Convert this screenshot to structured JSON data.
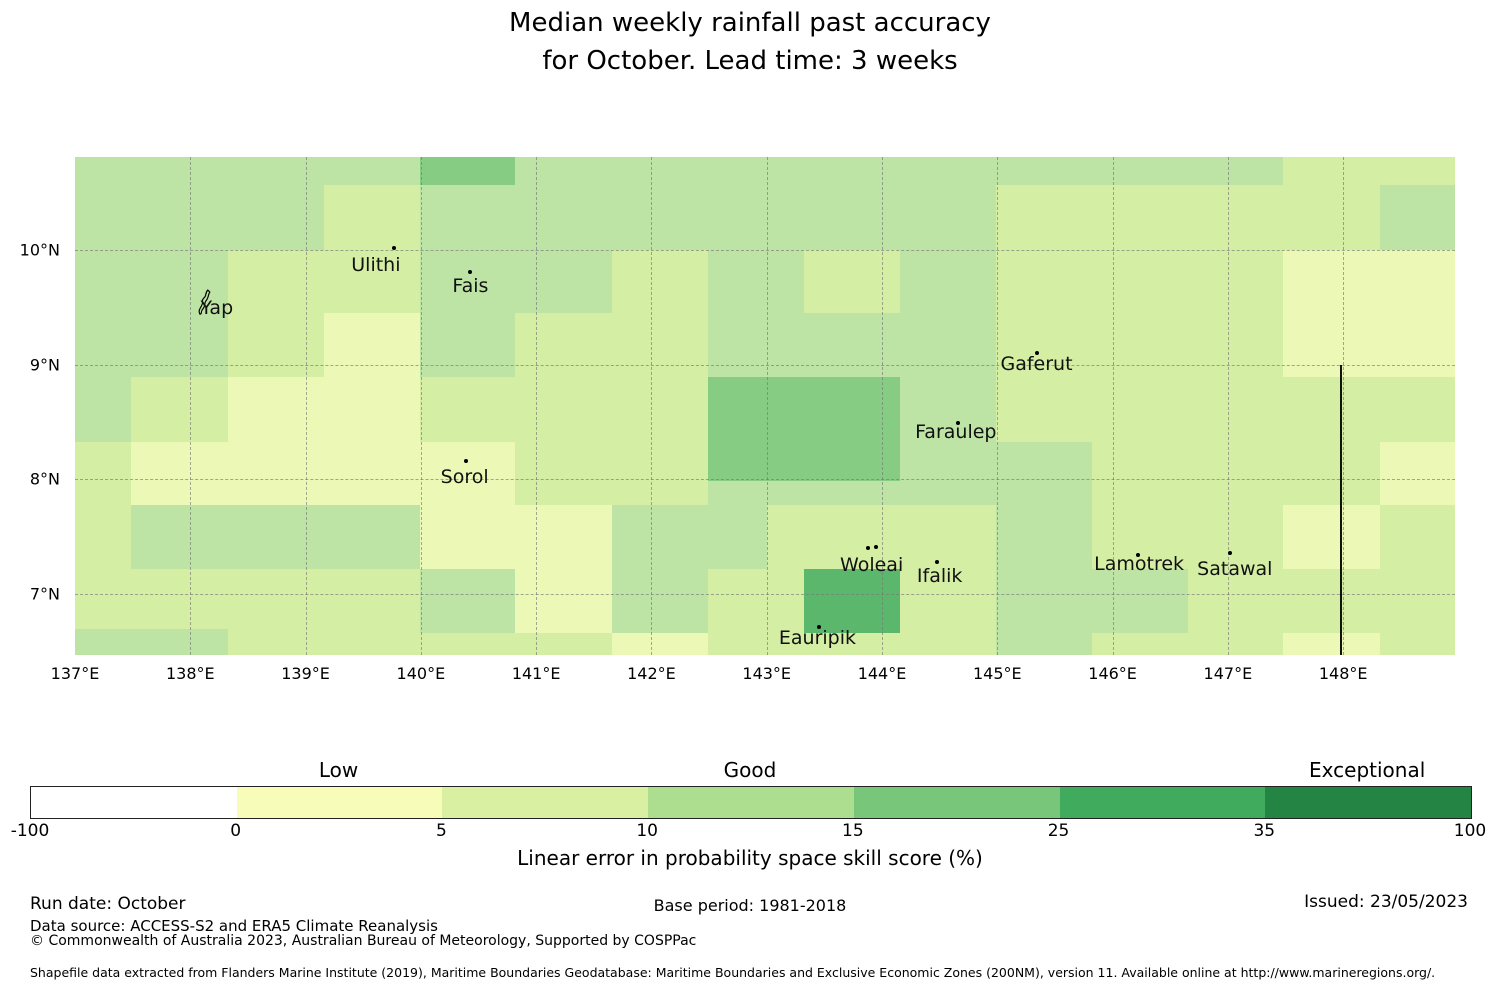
{
  "title": {
    "line1": "Median weekly rainfall past accuracy",
    "line2": "for October. Lead time: 3 weeks"
  },
  "chart_data": {
    "type": "heatmap",
    "title": "Median weekly rainfall past accuracy for October. Lead time: 3 weeks",
    "value_name": "Linear error in probability space skill score (%)",
    "lon_range": [
      137.0,
      148.97
    ],
    "lat_range": [
      6.47,
      10.81
    ],
    "grid_on": true,
    "gridline_lons": [
      138,
      139,
      140,
      141,
      142,
      143,
      144,
      145,
      146,
      147,
      148
    ],
    "gridline_lats": [
      7,
      8,
      9,
      10
    ],
    "x_ticks": [
      {
        "lon": 137,
        "label": "137°E"
      },
      {
        "lon": 138,
        "label": "138°E"
      },
      {
        "lon": 139,
        "label": "139°E"
      },
      {
        "lon": 140,
        "label": "140°E"
      },
      {
        "lon": 141,
        "label": "141°E"
      },
      {
        "lon": 142,
        "label": "142°E"
      },
      {
        "lon": 143,
        "label": "143°E"
      },
      {
        "lon": 144,
        "label": "144°E"
      },
      {
        "lon": 145,
        "label": "145°E"
      },
      {
        "lon": 146,
        "label": "146°E"
      },
      {
        "lon": 147,
        "label": "147°E"
      },
      {
        "lon": 148,
        "label": "148°E"
      }
    ],
    "y_ticks": [
      {
        "lat": 10,
        "label": "10°N"
      },
      {
        "lat": 9,
        "label": "9°N"
      },
      {
        "lat": 8,
        "label": "8°N"
      },
      {
        "lat": 7,
        "label": "7°N"
      }
    ],
    "skill_buckets": {
      "-100-0": "#ffffff",
      "0-5": "#f7fcb9",
      "5-10": "#d9f0a3",
      "10-15": "#addd8e",
      "15-25": "#78c679",
      "25-35": "#41ab5d",
      "35-100": "#238443"
    },
    "background_bucket": "10-15",
    "cells": [
      {
        "lon_w": 139.99,
        "lon_e": 140.82,
        "lat_n": 10.81,
        "lat_s": 10.57,
        "value": "15-25"
      },
      {
        "lon_w": 147.48,
        "lon_e": 148.97,
        "lat_n": 10.81,
        "lat_s": 10.57,
        "value": "5-10"
      },
      {
        "lon_w": 139.16,
        "lon_e": 139.99,
        "lat_n": 10.57,
        "lat_s": 10.0,
        "value": "5-10"
      },
      {
        "lon_w": 144.99,
        "lon_e": 148.32,
        "lat_n": 10.57,
        "lat_s": 10.0,
        "value": "5-10"
      },
      {
        "lon_w": 138.33,
        "lon_e": 139.99,
        "lat_n": 10.0,
        "lat_s": 9.45,
        "value": "5-10"
      },
      {
        "lon_w": 141.66,
        "lon_e": 142.49,
        "lat_n": 10.0,
        "lat_s": 9.45,
        "value": "5-10"
      },
      {
        "lon_w": 143.32,
        "lon_e": 144.16,
        "lat_n": 10.0,
        "lat_s": 9.45,
        "value": "5-10"
      },
      {
        "lon_w": 144.99,
        "lon_e": 147.48,
        "lat_n": 10.0,
        "lat_s": 8.89,
        "value": "5-10"
      },
      {
        "lon_w": 147.48,
        "lon_e": 148.97,
        "lat_n": 10.0,
        "lat_s": 8.89,
        "value": "0-5"
      },
      {
        "lon_w": 138.33,
        "lon_e": 139.16,
        "lat_n": 9.45,
        "lat_s": 8.89,
        "value": "5-10"
      },
      {
        "lon_w": 140.82,
        "lon_e": 142.49,
        "lat_n": 9.45,
        "lat_s": 8.89,
        "value": "5-10"
      },
      {
        "lon_w": 139.16,
        "lon_e": 139.99,
        "lat_n": 9.45,
        "lat_s": 8.33,
        "value": "0-5"
      },
      {
        "lon_w": 137.49,
        "lon_e": 138.33,
        "lat_n": 8.89,
        "lat_s": 8.33,
        "value": "5-10"
      },
      {
        "lon_w": 138.33,
        "lon_e": 139.16,
        "lat_n": 8.89,
        "lat_s": 8.33,
        "value": "0-5"
      },
      {
        "lon_w": 139.99,
        "lon_e": 141.66,
        "lat_n": 8.89,
        "lat_s": 8.33,
        "value": "5-10"
      },
      {
        "lon_w": 141.66,
        "lon_e": 142.49,
        "lat_n": 8.89,
        "lat_s": 7.78,
        "value": "5-10"
      },
      {
        "lon_w": 142.49,
        "lon_e": 144.16,
        "lat_n": 8.89,
        "lat_s": 7.99,
        "value": "15-25"
      },
      {
        "lon_w": 144.99,
        "lon_e": 148.97,
        "lat_n": 8.89,
        "lat_s": 8.33,
        "value": "5-10"
      },
      {
        "lon_w": 137.0,
        "lon_e": 137.49,
        "lat_n": 8.33,
        "lat_s": 6.7,
        "value": "5-10"
      },
      {
        "lon_w": 137.49,
        "lon_e": 139.99,
        "lat_n": 8.33,
        "lat_s": 7.78,
        "value": "0-5"
      },
      {
        "lon_w": 139.99,
        "lon_e": 140.82,
        "lat_n": 8.33,
        "lat_s": 7.22,
        "value": "0-5"
      },
      {
        "lon_w": 140.82,
        "lon_e": 141.66,
        "lat_n": 8.33,
        "lat_s": 7.78,
        "value": "5-10"
      },
      {
        "lon_w": 145.82,
        "lon_e": 148.32,
        "lat_n": 8.33,
        "lat_s": 7.78,
        "value": "5-10"
      },
      {
        "lon_w": 148.32,
        "lon_e": 148.97,
        "lat_n": 8.33,
        "lat_s": 7.78,
        "value": "0-5"
      },
      {
        "lon_w": 140.82,
        "lon_e": 141.66,
        "lat_n": 7.78,
        "lat_s": 6.66,
        "value": "0-5"
      },
      {
        "lon_w": 143.0,
        "lon_e": 144.99,
        "lat_n": 7.78,
        "lat_s": 7.22,
        "value": "5-10"
      },
      {
        "lon_w": 145.82,
        "lon_e": 147.48,
        "lat_n": 7.78,
        "lat_s": 7.22,
        "value": "5-10"
      },
      {
        "lon_w": 147.48,
        "lon_e": 148.32,
        "lat_n": 7.78,
        "lat_s": 7.22,
        "value": "0-5"
      },
      {
        "lon_w": 148.32,
        "lon_e": 148.97,
        "lat_n": 7.78,
        "lat_s": 7.22,
        "value": "5-10"
      },
      {
        "lon_w": 137.49,
        "lon_e": 138.33,
        "lat_n": 7.22,
        "lat_s": 6.7,
        "value": "5-10"
      },
      {
        "lon_w": 138.33,
        "lon_e": 139.99,
        "lat_n": 7.22,
        "lat_s": 6.66,
        "value": "5-10"
      },
      {
        "lon_w": 142.49,
        "lon_e": 143.32,
        "lat_n": 7.22,
        "lat_s": 6.66,
        "value": "5-10"
      },
      {
        "lon_w": 143.32,
        "lon_e": 144.16,
        "lat_n": 7.22,
        "lat_s": 6.66,
        "value": "25-35"
      },
      {
        "lon_w": 144.16,
        "lon_e": 144.99,
        "lat_n": 7.22,
        "lat_s": 6.66,
        "value": "5-10"
      },
      {
        "lon_w": 146.65,
        "lon_e": 148.97,
        "lat_n": 7.22,
        "lat_s": 6.66,
        "value": "5-10"
      },
      {
        "lon_w": 138.33,
        "lon_e": 141.66,
        "lat_n": 6.66,
        "lat_s": 6.47,
        "value": "5-10"
      },
      {
        "lon_w": 141.66,
        "lon_e": 142.49,
        "lat_n": 6.66,
        "lat_s": 6.47,
        "value": "0-5"
      },
      {
        "lon_w": 142.49,
        "lon_e": 144.99,
        "lat_n": 6.66,
        "lat_s": 6.47,
        "value": "5-10"
      },
      {
        "lon_w": 145.82,
        "lon_e": 147.48,
        "lat_n": 6.66,
        "lat_s": 6.47,
        "value": "5-10"
      },
      {
        "lon_w": 147.48,
        "lon_e": 148.32,
        "lat_n": 6.66,
        "lat_s": 6.47,
        "value": "0-5"
      },
      {
        "lon_w": 148.32,
        "lon_e": 148.97,
        "lat_n": 6.66,
        "lat_s": 6.47,
        "value": "5-10"
      }
    ],
    "islands": [
      {
        "name": "Yap",
        "label_lon": 138.23,
        "label_lat": 9.49,
        "marker_lon": 138.14,
        "marker_lat": 9.55,
        "marker": "outline"
      },
      {
        "name": "Ulithi",
        "label_lon": 139.61,
        "label_lat": 9.87,
        "marker_lon": 139.77,
        "marker_lat": 10.02,
        "marker": "dot"
      },
      {
        "name": "Fais",
        "label_lon": 140.43,
        "label_lat": 9.69,
        "marker_lon": 140.43,
        "marker_lat": 9.81,
        "marker": "dot"
      },
      {
        "name": "Gaferut",
        "label_lon": 145.34,
        "label_lat": 9.01,
        "marker_lon": 145.34,
        "marker_lat": 9.1,
        "marker": "dot"
      },
      {
        "name": "Faraulep",
        "label_lon": 144.64,
        "label_lat": 8.41,
        "marker_lon": 144.66,
        "marker_lat": 8.49,
        "marker": "dot"
      },
      {
        "name": "Sorol",
        "label_lon": 140.38,
        "label_lat": 8.02,
        "marker_lon": 140.39,
        "marker_lat": 8.16,
        "marker": "dot"
      },
      {
        "name": "Woleai",
        "label_lon": 143.91,
        "label_lat": 7.25,
        "marker_lon": 143.88,
        "marker_lat": 7.4,
        "marker": "dot2"
      },
      {
        "name": "Ifalik",
        "label_lon": 144.5,
        "label_lat": 7.16,
        "marker_lon": 144.48,
        "marker_lat": 7.28,
        "marker": "dot"
      },
      {
        "name": "Lamotrek",
        "label_lon": 146.23,
        "label_lat": 7.26,
        "marker_lon": 146.22,
        "marker_lat": 7.34,
        "marker": "dot"
      },
      {
        "name": "Satawal",
        "label_lon": 147.06,
        "label_lat": 7.22,
        "marker_lon": 147.02,
        "marker_lat": 7.36,
        "marker": "dot"
      },
      {
        "name": "Eauripik",
        "label_lon": 143.44,
        "label_lat": 6.62,
        "marker_lon": 143.45,
        "marker_lat": 6.71,
        "marker": "dot"
      }
    ],
    "eez_boundary": {
      "lon": 147.97,
      "lat_from": 9.0,
      "lat_to": 6.47
    }
  },
  "colorbar": {
    "axis_label": "Linear error in probability space skill score (%)",
    "tick_labels": [
      "-100",
      "0",
      "5",
      "10",
      "15",
      "25",
      "35",
      "100"
    ],
    "segments": [
      {
        "range": "-100 to 0",
        "color": "#ffffff"
      },
      {
        "range": "0 to 5",
        "color": "#f7fcb9"
      },
      {
        "range": "5 to 10",
        "color": "#d9f0a3"
      },
      {
        "range": "10 to 15",
        "color": "#addd8e"
      },
      {
        "range": "15 to 25",
        "color": "#78c679"
      },
      {
        "range": "25 to 35",
        "color": "#41ab5d"
      },
      {
        "range": "35 to 100",
        "color": "#238443"
      }
    ],
    "category_labels": [
      {
        "text": "Low",
        "segment_index": 1
      },
      {
        "text": "Good",
        "segment_index": 3
      },
      {
        "text": "Exceptional",
        "segment_index": 6
      }
    ]
  },
  "footer": {
    "run_date": "Run date: October",
    "data_source": "Data source: ACCESS-S2 and ERA5 Climate Reanalysis",
    "copyright": "© Commonwealth of Australia 2023, Australian Bureau of Meteorology, Supported by COSPPac",
    "base_period": "Base period: 1981-2018",
    "issued": "Issued: 23/05/2023",
    "shapefile_note": "Shapefile data extracted from Flanders Marine Institute (2019), Maritime Boundaries Geodatabase: Maritime Boundaries and Exclusive Economic Zones (200NM), version 11. Available online at http://www.marineregions.org/."
  }
}
